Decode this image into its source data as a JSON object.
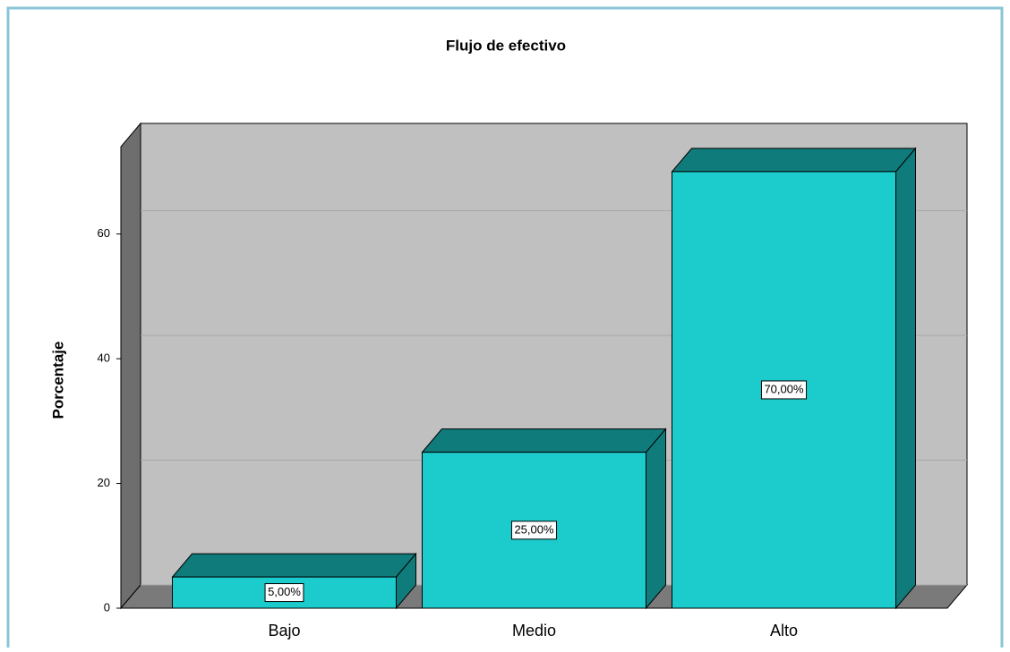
{
  "chart_data": {
    "type": "bar3d",
    "title": "Flujo de efectivo",
    "y_label": "Porcentaje",
    "categories": [
      "Bajo",
      "Medio",
      "Alto"
    ],
    "values": [
      5,
      25,
      70
    ],
    "value_labels": [
      "5,00%",
      "25,00%",
      "70,00%"
    ],
    "color": "#1ccccc",
    "shade_color": "#0f7b7b",
    "ylim": [
      0,
      74
    ],
    "yticks": [
      0,
      20,
      40,
      60
    ],
    "grid": true
  }
}
